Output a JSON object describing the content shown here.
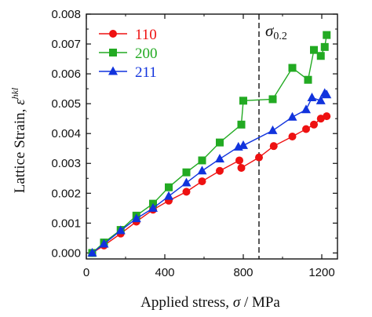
{
  "chart_data": {
    "type": "line",
    "xlabel_prefix": "Applied stress, ",
    "xlabel_symbol": "σ",
    "xlabel_unit": " /  MPa",
    "ylabel_prefix": "Lattice Strain, ",
    "ylabel_symbol": "ε",
    "ylabel_superscript": "hkl",
    "xlim": [
      0,
      1280
    ],
    "ylim": [
      -0.0002,
      0.008
    ],
    "x_ticks": [
      0,
      400,
      800,
      1200
    ],
    "y_ticks": [
      "0.000",
      "0.001",
      "0.002",
      "0.003",
      "0.004",
      "0.005",
      "0.006",
      "0.007",
      "0.008"
    ],
    "y_tick_values": [
      0,
      0.001,
      0.002,
      0.003,
      0.004,
      0.005,
      0.006,
      0.007,
      0.008
    ],
    "yield_line": {
      "x": 880,
      "label_symbol": "σ",
      "label_sub": "0.2"
    },
    "legend_position": "top-left",
    "series": [
      {
        "name": "110",
        "color": "#ee1111",
        "marker": "circle",
        "points": [
          [
            30,
            0.0
          ],
          [
            90,
            0.00025
          ],
          [
            175,
            0.00065
          ],
          [
            255,
            0.00105
          ],
          [
            340,
            0.00145
          ],
          [
            420,
            0.00175
          ],
          [
            510,
            0.00205
          ],
          [
            590,
            0.0024
          ],
          [
            680,
            0.00275
          ],
          [
            780,
            0.0031
          ],
          [
            790,
            0.00285
          ],
          [
            880,
            0.0032
          ],
          [
            955,
            0.00358
          ],
          [
            1050,
            0.0039
          ],
          [
            1120,
            0.00415
          ],
          [
            1160,
            0.0043
          ],
          [
            1195,
            0.0045
          ],
          [
            1225,
            0.00458
          ]
        ]
      },
      {
        "name": "200",
        "color": "#22aa22",
        "marker": "square",
        "points": [
          [
            30,
            0.0
          ],
          [
            90,
            0.00035
          ],
          [
            175,
            0.00077
          ],
          [
            255,
            0.00125
          ],
          [
            340,
            0.00165
          ],
          [
            420,
            0.0022
          ],
          [
            510,
            0.0027
          ],
          [
            590,
            0.0031
          ],
          [
            680,
            0.0037
          ],
          [
            790,
            0.0043
          ],
          [
            800,
            0.0051
          ],
          [
            950,
            0.00515
          ],
          [
            1050,
            0.0062
          ],
          [
            1130,
            0.0058
          ],
          [
            1160,
            0.0068
          ],
          [
            1195,
            0.0066
          ],
          [
            1215,
            0.0069
          ],
          [
            1225,
            0.0073
          ]
        ]
      },
      {
        "name": "211",
        "color": "#1133dd",
        "marker": "triangle",
        "points": [
          [
            30,
            0.0
          ],
          [
            90,
            0.0003
          ],
          [
            175,
            0.00075
          ],
          [
            255,
            0.00115
          ],
          [
            340,
            0.0015
          ],
          [
            420,
            0.0019
          ],
          [
            510,
            0.00235
          ],
          [
            590,
            0.00275
          ],
          [
            680,
            0.00315
          ],
          [
            775,
            0.00355
          ],
          [
            800,
            0.0036
          ],
          [
            950,
            0.0041
          ],
          [
            1050,
            0.00455
          ],
          [
            1120,
            0.0048
          ],
          [
            1150,
            0.0052
          ],
          [
            1195,
            0.0051
          ],
          [
            1215,
            0.00535
          ],
          [
            1225,
            0.0053
          ]
        ]
      }
    ]
  }
}
